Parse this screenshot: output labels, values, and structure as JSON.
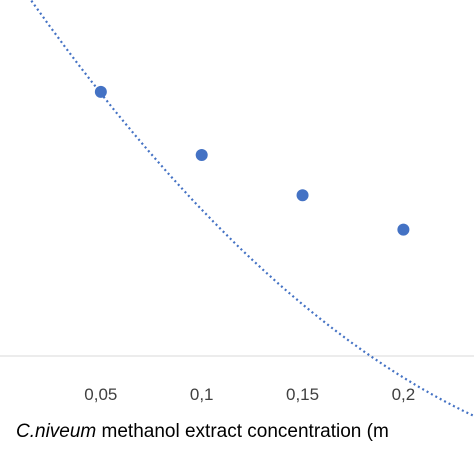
{
  "chart_data": {
    "type": "scatter",
    "x": [
      0.05,
      0.1,
      0.15,
      0.2
    ],
    "y": [
      0.79,
      0.68,
      0.61,
      0.55
    ],
    "x_ticks": [
      {
        "value": 0.05,
        "label": "0,05"
      },
      {
        "value": 0.1,
        "label": "0,1"
      },
      {
        "value": 0.15,
        "label": "0,15"
      },
      {
        "value": 0.2,
        "label": "0,2"
      }
    ],
    "xlabel": {
      "italic_part": "C.niveum",
      "rest": " methanol extract concentration (m"
    },
    "trendline": {
      "style": "dotted",
      "type": "polynomial",
      "coefficients": [
        1.0275,
        -5.175,
        7.5
      ]
    },
    "xlim": [
      0.0,
      0.235
    ],
    "ylim": [
      0.33,
      0.95
    ],
    "grid": false,
    "colors": {
      "marker": "#4472c4",
      "trendline": "#4472c4"
    }
  }
}
